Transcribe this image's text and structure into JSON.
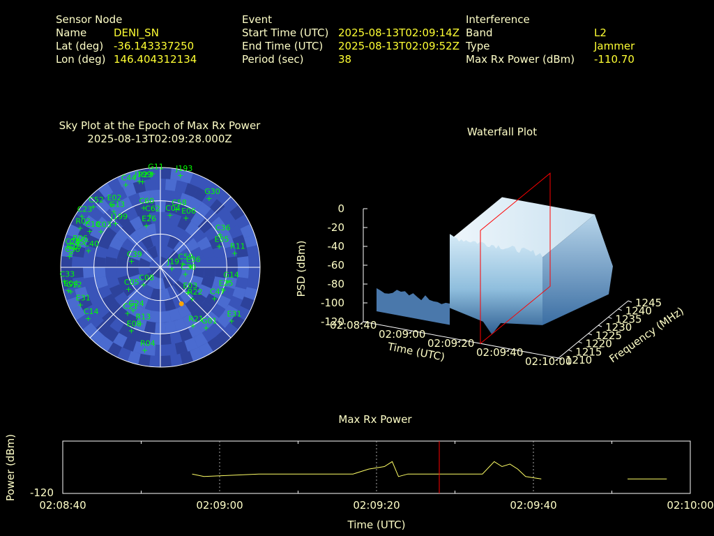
{
  "header": {
    "sensor": {
      "heading": "Sensor Node",
      "rows": [
        {
          "label": "Name",
          "value": "DENI_SN"
        },
        {
          "label": "Lat (deg)",
          "value": "-36.143337250"
        },
        {
          "label": "Lon (deg)",
          "value": "146.404312134"
        }
      ]
    },
    "event": {
      "heading": "Event",
      "rows": [
        {
          "label": "Start Time (UTC)",
          "value": "2025-08-13T02:09:14Z"
        },
        {
          "label": "End Time (UTC)",
          "value": "2025-08-13T02:09:52Z"
        },
        {
          "label": "Period (sec)",
          "value": "38"
        }
      ]
    },
    "interference": {
      "heading": "Interference",
      "rows": [
        {
          "label": "Band",
          "value": "L2"
        },
        {
          "label": "Type",
          "value": "Jammer"
        },
        {
          "label": "Max Rx Power (dBm)",
          "value": "-110.70"
        }
      ]
    }
  },
  "colors": {
    "text": "#ffffc8",
    "value": "#ffff33",
    "satellite": "#00ff00",
    "sky_bg": "#3a55b8",
    "sky_cell_light": "#4d70d4",
    "sky_cell_dark": "#2c3f95",
    "marker": "#ffa500",
    "power_line": "#ffff66",
    "cursor": "#ff0000"
  },
  "chart_data": [
    {
      "type": "scatter",
      "kind": "sky-plot",
      "title": "Sky Plot at the Epoch of Max Rx Power",
      "subtitle": "2025-08-13T02:09:28.000Z",
      "elevation_rings_deg": [
        0,
        30,
        60
      ],
      "azimuth_lines_deg": [
        0,
        45,
        90,
        135
      ],
      "satellites": [
        {
          "id": "G11",
          "az": 355,
          "el": 5
        },
        {
          "id": "J193",
          "az": 12,
          "el": 5
        },
        {
          "id": "C44",
          "az": 337,
          "el": 9
        },
        {
          "id": "J199",
          "az": 346,
          "el": 10
        },
        {
          "id": "R23",
          "az": 348,
          "el": 11
        },
        {
          "id": "G30",
          "az": 35,
          "el": 14
        },
        {
          "id": "C52",
          "az": 312,
          "el": 8
        },
        {
          "id": "C23",
          "az": 303,
          "el": 5
        },
        {
          "id": "E02",
          "az": 322,
          "el": 18
        },
        {
          "id": "G13",
          "az": 320,
          "el": 24
        },
        {
          "id": "R02",
          "az": 296,
          "el": 9
        },
        {
          "id": "C10",
          "az": 297,
          "el": 18
        },
        {
          "id": "C03",
          "az": 301,
          "el": 27
        },
        {
          "id": "J199b",
          "label": "J199",
          "az": 314,
          "el": 33
        },
        {
          "id": "C60",
          "az": 344,
          "el": 34
        },
        {
          "id": "C62",
          "az": 348,
          "el": 42
        },
        {
          "id": "C04",
          "az": 10,
          "el": 42
        },
        {
          "id": "C58",
          "az": 15,
          "el": 36
        },
        {
          "id": "E06",
          "az": 27,
          "el": 40
        },
        {
          "id": "E26",
          "az": 341,
          "el": 50
        },
        {
          "id": "C36",
          "az": 61,
          "el": 29
        },
        {
          "id": "E05",
          "az": 70,
          "el": 34
        },
        {
          "id": "R11",
          "az": 79,
          "el": 22
        },
        {
          "id": "C56",
          "az": 277,
          "el": 7
        },
        {
          "id": "R06",
          "az": 285,
          "el": 12
        },
        {
          "id": "C26",
          "az": 282,
          "el": 6
        },
        {
          "id": "C40",
          "az": 283,
          "el": 23
        },
        {
          "id": "C45",
          "az": 282,
          "el": 10
        },
        {
          "id": "R15",
          "az": 279,
          "el": 8
        },
        {
          "id": "C39",
          "az": 282,
          "el": 63
        },
        {
          "id": "C59",
          "az": 80,
          "el": 70
        },
        {
          "id": "E36",
          "az": 88,
          "el": 63
        },
        {
          "id": "C08",
          "az": 225,
          "el": 68
        },
        {
          "id": "J19",
          "az": 95,
          "el": 80
        },
        {
          "id": "C30",
          "az": 105,
          "el": 67
        },
        {
          "id": "E03",
          "az": 133,
          "el": 57
        },
        {
          "id": "R22",
          "az": 135,
          "el": 50
        },
        {
          "id": "G14",
          "az": 102,
          "el": 28
        },
        {
          "id": "E25",
          "az": 110,
          "el": 30
        },
        {
          "id": "C47",
          "az": 120,
          "el": 34
        },
        {
          "id": "C33",
          "az": 262,
          "el": 2
        },
        {
          "id": "E04",
          "az": 256,
          "el": 4
        },
        {
          "id": "G12",
          "az": 255,
          "el": 6
        },
        {
          "id": "E31",
          "az": 245,
          "el": 10
        },
        {
          "id": "C05",
          "az": 236,
          "el": 55
        },
        {
          "id": "G24",
          "az": 213,
          "el": 44
        },
        {
          "id": "C21",
          "az": 216,
          "el": 39
        },
        {
          "id": "R13",
          "az": 200,
          "el": 36
        },
        {
          "id": "C14",
          "az": 235,
          "el": 10
        },
        {
          "id": "E08",
          "az": 205,
          "el": 27
        },
        {
          "id": "R21",
          "az": 151,
          "el": 30
        },
        {
          "id": "G01",
          "az": 143,
          "el": 22
        },
        {
          "id": "E31b",
          "label": "E31",
          "az": 127,
          "el": 10
        },
        {
          "id": "R04",
          "az": 191,
          "el": 14
        }
      ],
      "max_power_direction": {
        "az": 150,
        "el": 52
      }
    },
    {
      "type": "area",
      "kind": "waterfall-3d",
      "title": "Waterfall Plot",
      "xlabel": "Time (UTC)",
      "ylabel": "Frequency (MHz)",
      "zlabel": "PSD (dBm)",
      "x_ticks": [
        "02:08:40",
        "02:09:00",
        "02:09:20",
        "02:09:40",
        "02:10:00"
      ],
      "y_ticks": [
        "1210",
        "1215",
        "1220",
        "1225",
        "1230",
        "1235",
        "1240",
        "1245"
      ],
      "z_ticks": [
        "0",
        "-20",
        "-40",
        "-60",
        "-80",
        "-100",
        "-120"
      ],
      "zlim": [
        -120,
        0
      ],
      "freq_range_mhz": [
        1210,
        1245
      ],
      "time_range": [
        "02:08:40",
        "02:10:00"
      ],
      "event_start": "02:09:14",
      "event_end": "02:09:52",
      "max_epoch": "02:09:28",
      "plateau_psd_dbm": -20,
      "noise_floor_psd_dbm": -90
    },
    {
      "type": "line",
      "title": "Max Rx Power",
      "xlabel": "Time (UTC)",
      "ylabel": "Power (dBm)",
      "y_tick": "-120",
      "x_ticks": [
        "02:08:40",
        "02:09:00",
        "02:09:20",
        "02:09:40",
        "02:10:00"
      ],
      "xlim_seconds_after_0208": [
        40,
        120
      ],
      "marker_time": "02:09:28",
      "series": [
        {
          "segments": [
            [
              [
                56.5,
                -111.1
              ],
              [
                58,
                -111.2
              ],
              [
                65,
                -111.1
              ],
              [
                70,
                -111.1
              ],
              [
                77,
                -111.1
              ],
              [
                79,
                -110.9
              ],
              [
                81,
                -110.8
              ],
              [
                82,
                -110.6
              ],
              [
                82.8,
                -111.2
              ],
              [
                84,
                -111.1
              ],
              [
                88,
                -111.1
              ],
              [
                93.5,
                -111.1
              ],
              [
                95,
                -110.6
              ],
              [
                96,
                -110.8
              ],
              [
                97,
                -110.7
              ],
              [
                98,
                -110.9
              ],
              [
                99,
                -111.2
              ],
              [
                101,
                -111.3
              ]
            ],
            [
              [
                112,
                -111.3
              ],
              [
                117,
                -111.3
              ]
            ]
          ]
        }
      ]
    }
  ]
}
